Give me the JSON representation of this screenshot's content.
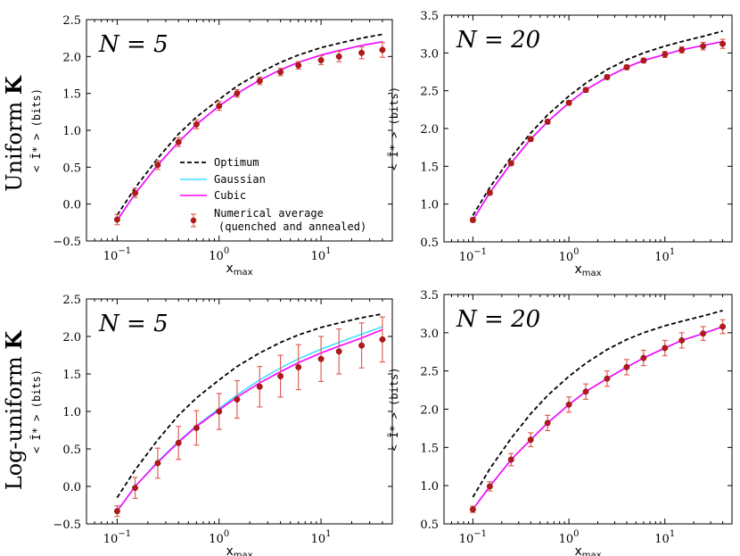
{
  "row_labels": [
    {
      "text": "Uniform ",
      "bold": "K"
    },
    {
      "text": "Log-uniform ",
      "bold": "K"
    }
  ],
  "legend": {
    "optimum": "Optimum",
    "gaussian": "Gaussian",
    "cubic": "Cubic",
    "numerical_line1": "Numerical average",
    "numerical_line2": "(quenched and annealed)"
  },
  "colors": {
    "optimum": "#000000",
    "gaussian": "#40e0ff",
    "cubic": "#ff00ff",
    "points": "#b41818",
    "errorbars": "#e06055"
  },
  "chart_data": [
    {
      "type": "line",
      "annotation": "N = 5",
      "xlabel": "x",
      "xlabel_sub": "max",
      "ylabel": "< Ĩ* > (bits)",
      "xscale": "log",
      "xlim": [
        0.05,
        50
      ],
      "ylim": [
        -0.5,
        2.5
      ],
      "yticks": [
        -0.5,
        0.0,
        0.5,
        1.0,
        1.5,
        2.0,
        2.5
      ],
      "xticks": [
        {
          "base": "10",
          "exp": "−1",
          "value": 0.1
        },
        {
          "base": "10",
          "exp": "0",
          "value": 1
        },
        {
          "base": "10",
          "exp": "1",
          "value": 10
        }
      ],
      "series": [
        {
          "name": "Optimum",
          "style": "dashed",
          "x": [
            0.1,
            0.15,
            0.25,
            0.4,
            0.6,
            1,
            1.5,
            2.5,
            4,
            6,
            10,
            15,
            25,
            40
          ],
          "y": [
            -0.15,
            0.22,
            0.62,
            0.95,
            1.18,
            1.42,
            1.6,
            1.78,
            1.92,
            2.02,
            2.12,
            2.18,
            2.25,
            2.3
          ]
        },
        {
          "name": "Gaussian",
          "style": "solid",
          "x": [
            0.1,
            0.15,
            0.25,
            0.4,
            0.6,
            1,
            1.5,
            2.5,
            4,
            6,
            10,
            15,
            25,
            40
          ],
          "y": [
            -0.22,
            0.14,
            0.53,
            0.84,
            1.08,
            1.33,
            1.5,
            1.68,
            1.82,
            1.92,
            2.02,
            2.08,
            2.15,
            2.2
          ]
        },
        {
          "name": "Cubic",
          "style": "solid",
          "x": [
            0.1,
            0.15,
            0.25,
            0.4,
            0.6,
            1,
            1.5,
            2.5,
            4,
            6,
            10,
            15,
            25,
            40
          ],
          "y": [
            -0.22,
            0.14,
            0.53,
            0.84,
            1.08,
            1.33,
            1.5,
            1.68,
            1.82,
            1.92,
            2.02,
            2.08,
            2.15,
            2.2
          ]
        },
        {
          "name": "Numerical average (quenched and annealed)",
          "style": "points",
          "x": [
            0.1,
            0.15,
            0.25,
            0.4,
            0.6,
            1,
            1.5,
            2.5,
            4,
            6,
            10,
            15,
            25,
            40
          ],
          "y": [
            -0.21,
            0.15,
            0.53,
            0.84,
            1.08,
            1.33,
            1.5,
            1.67,
            1.79,
            1.88,
            1.95,
            2.0,
            2.05,
            2.09
          ],
          "err": [
            0.07,
            0.06,
            0.06,
            0.06,
            0.06,
            0.06,
            0.05,
            0.05,
            0.05,
            0.05,
            0.06,
            0.07,
            0.08,
            0.1
          ]
        }
      ]
    },
    {
      "type": "line",
      "annotation": "N = 20",
      "xlabel": "x",
      "xlabel_sub": "max",
      "ylabel": "< Ĩ* > (bits)",
      "xscale": "log",
      "xlim": [
        0.05,
        50
      ],
      "ylim": [
        0.5,
        3.5
      ],
      "yticks": [
        0.5,
        1.0,
        1.5,
        2.0,
        2.5,
        3.0,
        3.5
      ],
      "xticks": [
        {
          "base": "10",
          "exp": "−1",
          "value": 0.1
        },
        {
          "base": "10",
          "exp": "0",
          "value": 1
        },
        {
          "base": "10",
          "exp": "1",
          "value": 10
        }
      ],
      "series": [
        {
          "name": "Optimum",
          "style": "dashed",
          "x": [
            0.1,
            0.15,
            0.25,
            0.4,
            0.6,
            1,
            1.5,
            2.5,
            4,
            6,
            10,
            15,
            25,
            40
          ],
          "y": [
            0.85,
            1.22,
            1.62,
            1.94,
            2.18,
            2.43,
            2.6,
            2.78,
            2.91,
            3.0,
            3.09,
            3.15,
            3.22,
            3.29
          ]
        },
        {
          "name": "Gaussian",
          "style": "solid",
          "x": [
            0.1,
            0.15,
            0.25,
            0.4,
            0.6,
            1,
            1.5,
            2.5,
            4,
            6,
            10,
            15,
            25,
            40
          ],
          "y": [
            0.79,
            1.15,
            1.54,
            1.86,
            2.09,
            2.34,
            2.51,
            2.68,
            2.81,
            2.9,
            2.98,
            3.04,
            3.1,
            3.15
          ]
        },
        {
          "name": "Cubic",
          "style": "solid",
          "x": [
            0.1,
            0.15,
            0.25,
            0.4,
            0.6,
            1,
            1.5,
            2.5,
            4,
            6,
            10,
            15,
            25,
            40
          ],
          "y": [
            0.79,
            1.15,
            1.54,
            1.86,
            2.09,
            2.34,
            2.51,
            2.68,
            2.81,
            2.9,
            2.98,
            3.04,
            3.1,
            3.15
          ]
        },
        {
          "name": "Numerical average (quenched and annealed)",
          "style": "points",
          "x": [
            0.1,
            0.15,
            0.25,
            0.4,
            0.6,
            1,
            1.5,
            2.5,
            4,
            6,
            10,
            15,
            25,
            40
          ],
          "y": [
            0.79,
            1.15,
            1.54,
            1.86,
            2.09,
            2.34,
            2.51,
            2.68,
            2.81,
            2.9,
            2.98,
            3.04,
            3.09,
            3.12
          ],
          "err": [
            0.03,
            0.03,
            0.03,
            0.03,
            0.03,
            0.03,
            0.03,
            0.03,
            0.03,
            0.03,
            0.04,
            0.04,
            0.05,
            0.06
          ]
        }
      ]
    },
    {
      "type": "line",
      "annotation": "N = 5",
      "xlabel": "x",
      "xlabel_sub": "max",
      "ylabel": "< Ĩ* > (bits)",
      "xscale": "log",
      "xlim": [
        0.05,
        50
      ],
      "ylim": [
        -0.5,
        2.5
      ],
      "yticks": [
        -0.5,
        0.0,
        0.5,
        1.0,
        1.5,
        2.0,
        2.5
      ],
      "xticks": [
        {
          "base": "10",
          "exp": "−1",
          "value": 0.1
        },
        {
          "base": "10",
          "exp": "0",
          "value": 1
        },
        {
          "base": "10",
          "exp": "1",
          "value": 10
        }
      ],
      "series": [
        {
          "name": "Optimum",
          "style": "dashed",
          "x": [
            0.1,
            0.15,
            0.25,
            0.4,
            0.6,
            1,
            1.5,
            2.5,
            4,
            6,
            10,
            15,
            25,
            40
          ],
          "y": [
            -0.15,
            0.22,
            0.62,
            0.95,
            1.18,
            1.42,
            1.6,
            1.78,
            1.92,
            2.02,
            2.12,
            2.18,
            2.25,
            2.3
          ]
        },
        {
          "name": "Gaussian",
          "style": "solid",
          "x": [
            0.1,
            0.15,
            0.25,
            0.4,
            0.6,
            1,
            1.5,
            2.5,
            4,
            6,
            10,
            15,
            25,
            40
          ],
          "y": [
            -0.33,
            0.0,
            0.33,
            0.6,
            0.81,
            1.04,
            1.22,
            1.42,
            1.58,
            1.7,
            1.83,
            1.92,
            2.03,
            2.13
          ]
        },
        {
          "name": "Cubic",
          "style": "solid",
          "x": [
            0.1,
            0.15,
            0.25,
            0.4,
            0.6,
            1,
            1.5,
            2.5,
            4,
            6,
            10,
            15,
            25,
            40
          ],
          "y": [
            -0.33,
            0.0,
            0.32,
            0.59,
            0.8,
            1.02,
            1.19,
            1.38,
            1.53,
            1.65,
            1.78,
            1.87,
            1.98,
            2.09
          ]
        },
        {
          "name": "Numerical average (quenched and annealed)",
          "style": "points",
          "x": [
            0.1,
            0.15,
            0.25,
            0.4,
            0.6,
            1,
            1.5,
            2.5,
            4,
            6,
            10,
            15,
            25,
            40
          ],
          "y": [
            -0.33,
            -0.02,
            0.31,
            0.58,
            0.78,
            1.0,
            1.16,
            1.33,
            1.47,
            1.59,
            1.7,
            1.8,
            1.88,
            1.96
          ],
          "err": [
            0.07,
            0.14,
            0.2,
            0.22,
            0.23,
            0.24,
            0.25,
            0.27,
            0.28,
            0.3,
            0.3,
            0.3,
            0.3,
            0.3
          ]
        }
      ]
    },
    {
      "type": "line",
      "annotation": "N = 20",
      "xlabel": "x",
      "xlabel_sub": "max",
      "ylabel": "< Ĩ* > (bits)",
      "xscale": "log",
      "xlim": [
        0.05,
        50
      ],
      "ylim": [
        0.5,
        3.5
      ],
      "yticks": [
        0.5,
        1.0,
        1.5,
        2.0,
        2.5,
        3.0,
        3.5
      ],
      "xticks": [
        {
          "base": "10",
          "exp": "−1",
          "value": 0.1
        },
        {
          "base": "10",
          "exp": "0",
          "value": 1
        },
        {
          "base": "10",
          "exp": "1",
          "value": 10
        }
      ],
      "series": [
        {
          "name": "Optimum",
          "style": "dashed",
          "x": [
            0.1,
            0.15,
            0.25,
            0.4,
            0.6,
            1,
            1.5,
            2.5,
            4,
            6,
            10,
            15,
            25,
            40
          ],
          "y": [
            0.85,
            1.22,
            1.62,
            1.94,
            2.18,
            2.43,
            2.6,
            2.78,
            2.91,
            3.0,
            3.09,
            3.15,
            3.22,
            3.29
          ]
        },
        {
          "name": "Gaussian",
          "style": "solid",
          "x": [
            0.1,
            0.15,
            0.25,
            0.4,
            0.6,
            1,
            1.5,
            2.5,
            4,
            6,
            10,
            15,
            25,
            40
          ],
          "y": [
            0.69,
            0.99,
            1.34,
            1.6,
            1.82,
            2.06,
            2.23,
            2.4,
            2.55,
            2.67,
            2.8,
            2.9,
            2.99,
            3.08
          ]
        },
        {
          "name": "Cubic",
          "style": "solid",
          "x": [
            0.1,
            0.15,
            0.25,
            0.4,
            0.6,
            1,
            1.5,
            2.5,
            4,
            6,
            10,
            15,
            25,
            40
          ],
          "y": [
            0.69,
            0.99,
            1.34,
            1.6,
            1.82,
            2.06,
            2.23,
            2.4,
            2.55,
            2.67,
            2.8,
            2.9,
            2.99,
            3.08
          ]
        },
        {
          "name": "Numerical average (quenched and annealed)",
          "style": "points",
          "x": [
            0.1,
            0.15,
            0.25,
            0.4,
            0.6,
            1,
            1.5,
            2.5,
            4,
            6,
            10,
            15,
            25,
            40
          ],
          "y": [
            0.69,
            0.99,
            1.34,
            1.6,
            1.82,
            2.06,
            2.23,
            2.4,
            2.55,
            2.67,
            2.8,
            2.9,
            2.99,
            3.08
          ],
          "err": [
            0.04,
            0.06,
            0.08,
            0.09,
            0.1,
            0.1,
            0.1,
            0.1,
            0.1,
            0.1,
            0.1,
            0.1,
            0.09,
            0.09
          ]
        }
      ]
    }
  ]
}
